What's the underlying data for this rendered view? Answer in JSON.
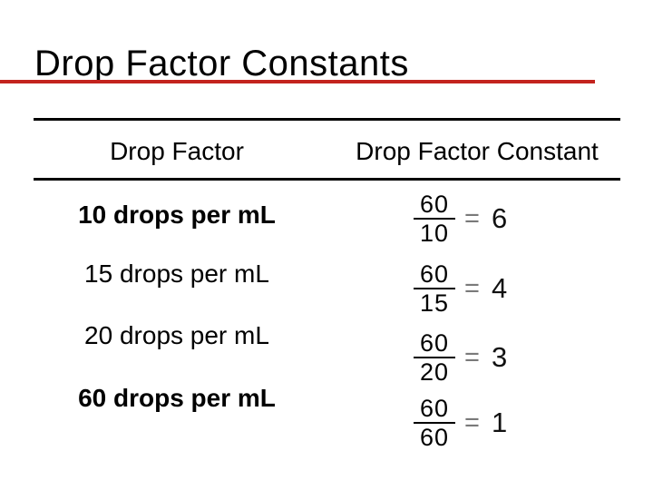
{
  "slide": {
    "title": "Drop Factor Constants"
  },
  "colors": {
    "title_underline_red": "#c3231e",
    "text_black": "#000000"
  },
  "table": {
    "headers": {
      "factor": "Drop Factor",
      "constant": "Drop Factor Constant"
    },
    "rows": [
      {
        "factor": "10 drops per mL",
        "numerator": "60",
        "denominator": "10",
        "equals": "=",
        "result": "6"
      },
      {
        "factor": "15 drops per mL",
        "numerator": "60",
        "denominator": "15",
        "equals": "=",
        "result": "4"
      },
      {
        "factor": "20 drops per mL",
        "numerator": "60",
        "denominator": "20",
        "equals": "=",
        "result": "3"
      },
      {
        "factor": "60 drops per mL",
        "numerator": "60",
        "denominator": "60",
        "equals": "=",
        "result": "1"
      }
    ]
  }
}
